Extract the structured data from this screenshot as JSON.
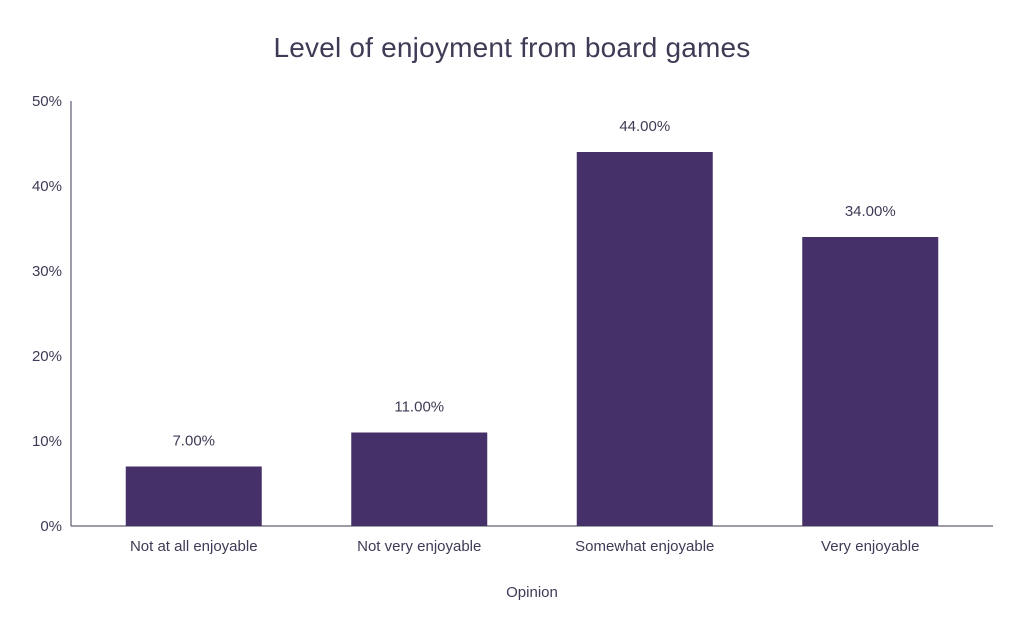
{
  "chart_data": {
    "type": "bar",
    "title": "Level of enjoyment from board games",
    "xlabel": "Opinion",
    "ylabel": "",
    "categories": [
      "Not at all enjoyable",
      "Not very enjoyable",
      "Somewhat enjoyable",
      "Very enjoyable"
    ],
    "values": [
      7,
      11,
      44,
      34
    ],
    "data_labels": [
      "7.00%",
      "11.00%",
      "44.00%",
      "34.00%"
    ],
    "ylim": [
      0,
      50
    ],
    "yticks": [
      0,
      10,
      20,
      30,
      40,
      50
    ],
    "ytick_labels": [
      "0%",
      "10%",
      "20%",
      "30%",
      "40%",
      "50%"
    ],
    "grid": false,
    "legend": "none",
    "colors": {
      "bar": "#45306a",
      "axis": "#3f3a55",
      "text": "#3f3a55"
    }
  }
}
